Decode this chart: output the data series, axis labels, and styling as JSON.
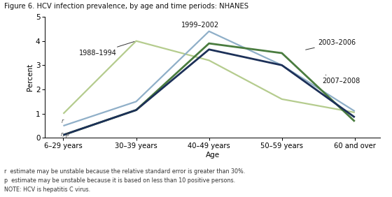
{
  "title": "Figure 6. HCV infection prevalence, by age and time periods: NHANES",
  "xlabel": "Age",
  "ylabel": "Percent",
  "x_labels": [
    "6–29 years",
    "30–39 years",
    "40–49 years",
    "50–59 years",
    "60 and over"
  ],
  "ylim": [
    0,
    5
  ],
  "yticks": [
    0,
    1,
    2,
    3,
    4,
    5
  ],
  "series": [
    {
      "label": "1988–1994",
      "values": [
        1.0,
        4.0,
        3.2,
        1.6,
        1.05
      ],
      "color": "#b5cc8e",
      "linewidth": 1.6
    },
    {
      "label": "1999–2002",
      "values": [
        0.5,
        1.5,
        4.4,
        3.0,
        1.1
      ],
      "color": "#8fafc8",
      "linewidth": 1.6
    },
    {
      "label": "2003–2006",
      "values": [
        0.12,
        1.15,
        3.9,
        3.5,
        0.68
      ],
      "color": "#4a7c3f",
      "linewidth": 2.0
    },
    {
      "label": "2007–2008",
      "values": [
        0.12,
        1.15,
        3.65,
        3.0,
        0.85
      ],
      "color": "#1c3058",
      "linewidth": 2.0
    }
  ],
  "footnotes": [
    "r  estimate may be unstable because the relative standard error is greater than 30%.",
    "p  estimate may be unstable because it is based on less than 10 positive persons.",
    "NOTE: HCV is hepatitis C virus."
  ],
  "background_color": "#ffffff",
  "fig_background_color": "#ffffff"
}
